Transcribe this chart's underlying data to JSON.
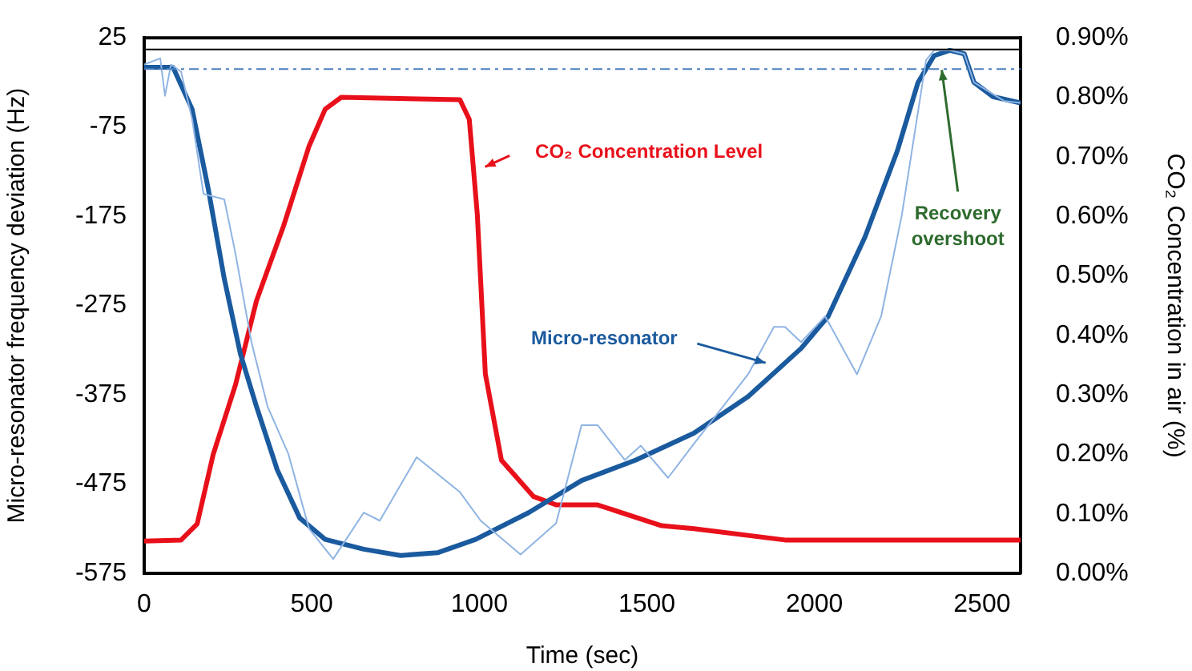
{
  "chart_data": {
    "type": "line",
    "xlabel": "Time (sec)",
    "ylabel": "Micro-resonator frequency deviation (Hz)",
    "y2label": "CO₂ Concentration in air (%)",
    "xlim": [
      0,
      2615
    ],
    "xticks": [
      0,
      500,
      1000,
      1500,
      2000,
      2500
    ],
    "ylim": [
      -575,
      25
    ],
    "yticks": [
      -575,
      -475,
      -375,
      -275,
      -175,
      -75,
      25
    ],
    "y2lim": [
      0,
      0.9
    ],
    "y2ticks": [
      {
        "value": 0,
        "label": "0.00%"
      },
      {
        "value": 0.1,
        "label": "0.10%"
      },
      {
        "value": 0.2,
        "label": "0.20%"
      },
      {
        "value": 0.3,
        "label": "0.30%"
      },
      {
        "value": 0.4,
        "label": "0.40%"
      },
      {
        "value": 0.5,
        "label": "0.50%"
      },
      {
        "value": 0.6,
        "label": "0.60%"
      },
      {
        "value": 0.7,
        "label": "0.70%"
      },
      {
        "value": 0.8,
        "label": "0.80%"
      },
      {
        "value": 0.9,
        "label": "0.90%"
      }
    ],
    "grid": false,
    "legend": false,
    "marker": "none",
    "line_style": "solid",
    "series": [
      {
        "color": "#8fb4e3",
        "x": [
          0,
          48,
          62,
          80,
          110,
          143,
          177,
          239,
          272,
          320,
          368,
          430,
          492,
          564,
          655,
          703,
          813,
          942,
          1004,
          1123,
          1229,
          1305,
          1353,
          1434,
          1482,
          1563,
          1640,
          1802,
          1879,
          1912,
          1960,
          2032,
          2127,
          2199,
          2261,
          2333,
          2357,
          2404,
          2447,
          2476,
          2567,
          2615
        ],
        "values": [
          -5,
          2,
          -40,
          -5,
          -13,
          -66,
          -150,
          -156,
          -216,
          -316,
          -388,
          -441,
          -525,
          -559,
          -507,
          -516,
          -445,
          -484,
          -516,
          -554,
          -519,
          -409,
          -409,
          -448,
          -432,
          -468,
          -430,
          -352,
          -299,
          -299,
          -316,
          -287,
          -352,
          -287,
          -173,
          0,
          11,
          11,
          7,
          -25,
          -46,
          -48
        ]
      },
      {
        "color": "#1a5a9e",
        "x": [
          0,
          86,
          143,
          191,
          239,
          287,
          335,
          397,
          464,
          540,
          655,
          765,
          875,
          989,
          1147,
          1305,
          1467,
          1640,
          1802,
          1960,
          2041,
          2151,
          2247,
          2309,
          2357,
          2404,
          2447,
          2476,
          2533,
          2615
        ],
        "values": [
          -8,
          -8,
          -55,
          -144,
          -245,
          -329,
          -388,
          -459,
          -513,
          -537,
          -548,
          -555,
          -552,
          -537,
          -507,
          -471,
          -448,
          -418,
          -377,
          -323,
          -287,
          -198,
          -102,
          -25,
          5,
          11,
          7,
          -25,
          -41,
          -48
        ]
      },
      {
        "axis": "y2",
        "color": "#e8101a",
        "x": [
          0,
          110,
          158,
          206,
          272,
          335,
          416,
          492,
          540,
          588,
          942,
          970,
          994,
          1018,
          1066,
          1162,
          1229,
          1353,
          1544,
          1640,
          1912,
          2615
        ],
        "values": [
          0.054,
          0.056,
          0.083,
          0.2,
          0.316,
          0.458,
          0.584,
          0.718,
          0.78,
          0.8,
          0.796,
          0.763,
          0.603,
          0.335,
          0.19,
          0.129,
          0.115,
          0.115,
          0.08,
          0.075,
          0.056,
          0.056
        ]
      }
    ],
    "ref_lines": [
      {
        "axis": "y",
        "value": 12,
        "color": "#000000",
        "line_style": "solid"
      },
      {
        "axis": "y",
        "value": -10,
        "color": "#4a7fc0",
        "line_style": "dashdot"
      }
    ],
    "annotations": [
      "CO₂ Concentration Level",
      "Micro-resonator",
      {
        "text": "Recovery\novershoot",
        "x": 2380,
        "y": -11
      }
    ]
  }
}
